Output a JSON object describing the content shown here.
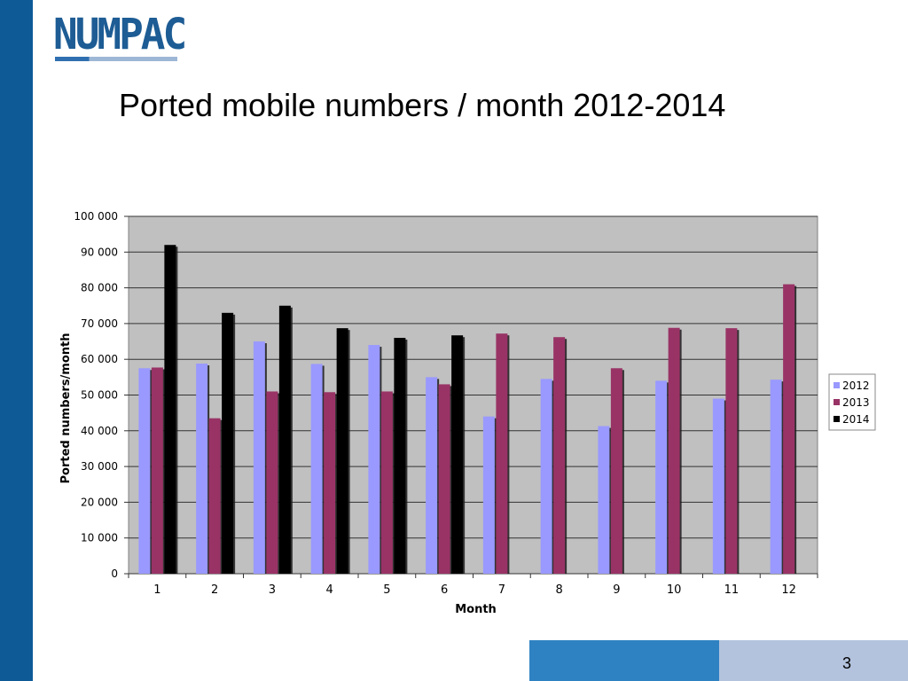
{
  "logo": {
    "text": "NUMPAC"
  },
  "slide": {
    "title": "Ported mobile numbers / month 2012-2014",
    "page_number": "3"
  },
  "colors": {
    "sidebar": "#0e5a96",
    "footer_blue": "#2f82c2",
    "footer_light": "#b3c3dd",
    "plot_background": "#c0c0c0"
  },
  "chart_data": {
    "type": "bar",
    "xlabel": "Month",
    "ylabel": "Ported numbers/month",
    "ylim": [
      0,
      100000
    ],
    "y_ticks": [
      0,
      10000,
      20000,
      30000,
      40000,
      50000,
      60000,
      70000,
      80000,
      90000,
      100000
    ],
    "y_tick_labels": [
      "0",
      "10 000",
      "20 000",
      "30 000",
      "40 000",
      "50 000",
      "60 000",
      "70 000",
      "80 000",
      "90 000",
      "100 000"
    ],
    "categories": [
      "1",
      "2",
      "3",
      "4",
      "5",
      "6",
      "7",
      "8",
      "9",
      "10",
      "11",
      "12"
    ],
    "grid": true,
    "legend_position": "right",
    "series": [
      {
        "name": "2012",
        "color": "#9999ff",
        "values": [
          57500,
          58800,
          65000,
          58700,
          64000,
          55000,
          44000,
          54500,
          41300,
          54000,
          49000,
          54300
        ]
      },
      {
        "name": "2013",
        "color": "#993366",
        "values": [
          57700,
          43500,
          51000,
          50800,
          51000,
          53000,
          67200,
          66200,
          57500,
          68800,
          68700,
          81000
        ]
      },
      {
        "name": "2014",
        "color": "#000000",
        "values": [
          92000,
          73000,
          75000,
          68700,
          66000,
          66700,
          null,
          null,
          null,
          null,
          null,
          null
        ]
      }
    ]
  }
}
